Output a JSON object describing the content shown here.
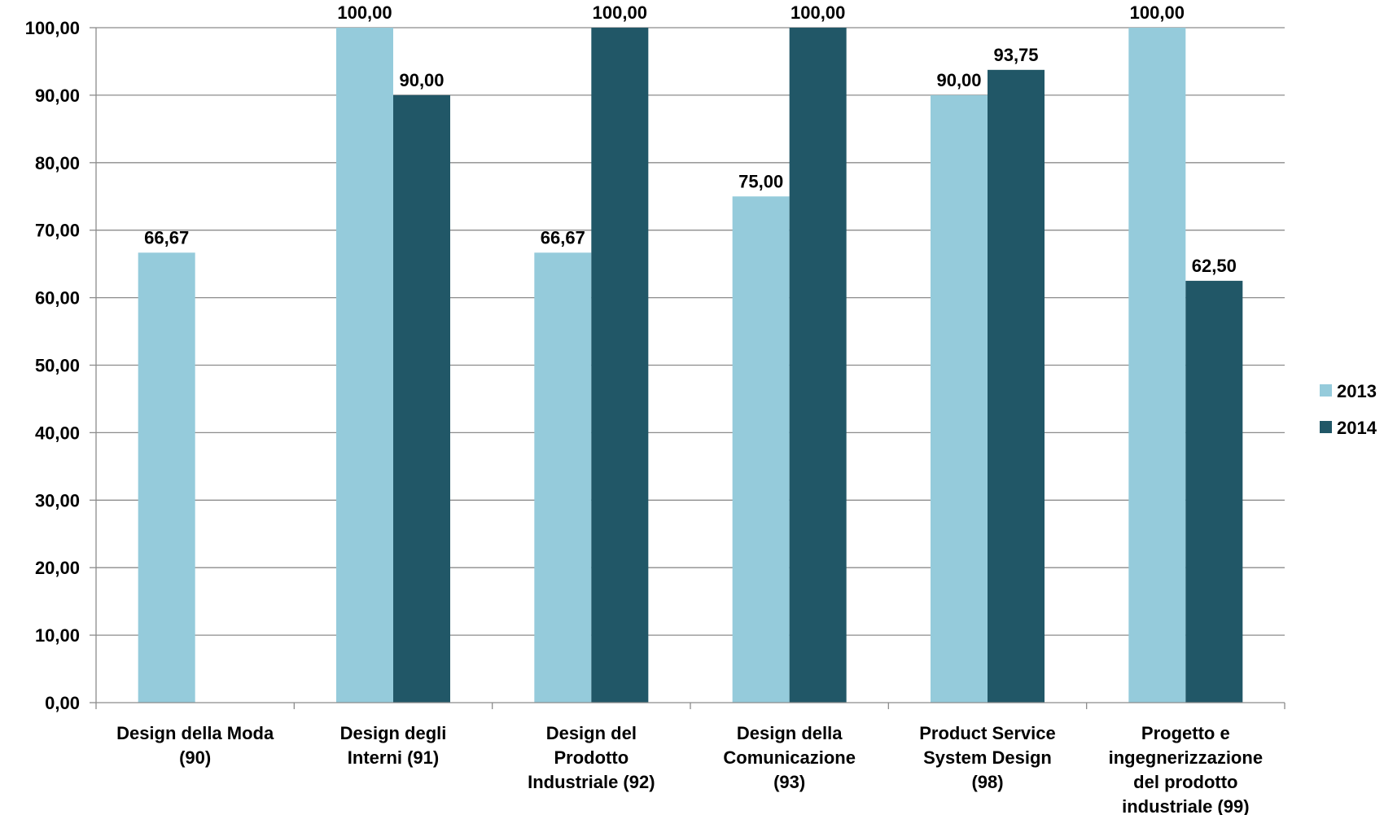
{
  "chart_data": {
    "type": "bar",
    "categories": [
      [
        "Design della Moda",
        "(90)"
      ],
      [
        "Design degli",
        "Interni (91)"
      ],
      [
        "Design del",
        "Prodotto",
        "Industriale (92)"
      ],
      [
        "Design della",
        "Comunicazione",
        "(93)"
      ],
      [
        "Product Service",
        "System Design",
        "(98)"
      ],
      [
        "Progetto e",
        "ingegnerizzazione",
        "del prodotto",
        "industriale (99)"
      ]
    ],
    "series": [
      {
        "name": "2013",
        "color": "#95CBDB",
        "values": [
          66.67,
          100.0,
          66.67,
          75.0,
          90.0,
          100.0
        ],
        "labels": [
          "66,67",
          "100,00",
          "66,67",
          "75,00",
          "90,00",
          "100,00"
        ]
      },
      {
        "name": "2014",
        "color": "#215767",
        "values": [
          null,
          90.0,
          100.0,
          100.0,
          93.75,
          62.5
        ],
        "labels": [
          null,
          "90,00",
          "100,00",
          "100,00",
          "93,75",
          "62,50"
        ]
      }
    ],
    "yticks": [
      "0,00",
      "10,00",
      "20,00",
      "30,00",
      "40,00",
      "50,00",
      "60,00",
      "70,00",
      "80,00",
      "90,00",
      "100,00"
    ],
    "ylim": [
      0,
      100
    ],
    "title": "",
    "xlabel": "",
    "ylabel": "",
    "grid": true,
    "legend": "right"
  }
}
